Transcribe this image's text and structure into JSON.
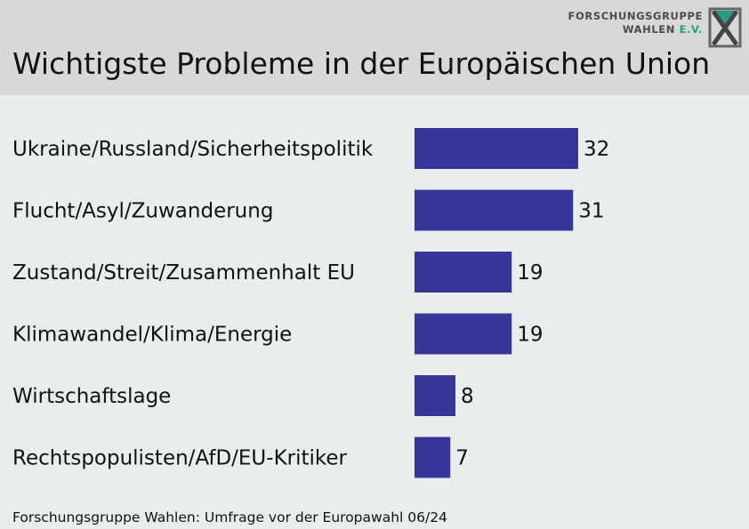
{
  "header": {
    "title": "Wichtigste Probleme in der Europäischen Union",
    "logo": {
      "line1": "FORSCHUNGSGRUPPE",
      "line2_main": "WAHLEN",
      "line2_accent": "E.V.",
      "icon": "ballot-x-logo-icon"
    }
  },
  "colors": {
    "bar": "#36359a",
    "header_bg": "#d8d8d8",
    "chart_bg": "#e9eeed",
    "logo_accent": "#2a9a7e"
  },
  "chart_data": {
    "type": "bar",
    "orientation": "horizontal",
    "title": "Wichtigste Probleme in der Europäischen Union",
    "categories": [
      "Ukraine/Russland/Sicherheitspolitik",
      "Flucht/Asyl/Zuwanderung",
      "Zustand/Streit/Zusammenhalt EU",
      "Klimawandel/Klima/Energie",
      "Wirtschaftslage",
      "Rechtspopulisten/AfD/EU-Kritiker"
    ],
    "values": [
      32,
      31,
      19,
      19,
      8,
      7
    ],
    "data_labels": true,
    "grid": false,
    "legend": "none"
  },
  "footer": {
    "source": "Forschungsgruppe Wahlen: Umfrage vor der Europawahl 06/24"
  }
}
